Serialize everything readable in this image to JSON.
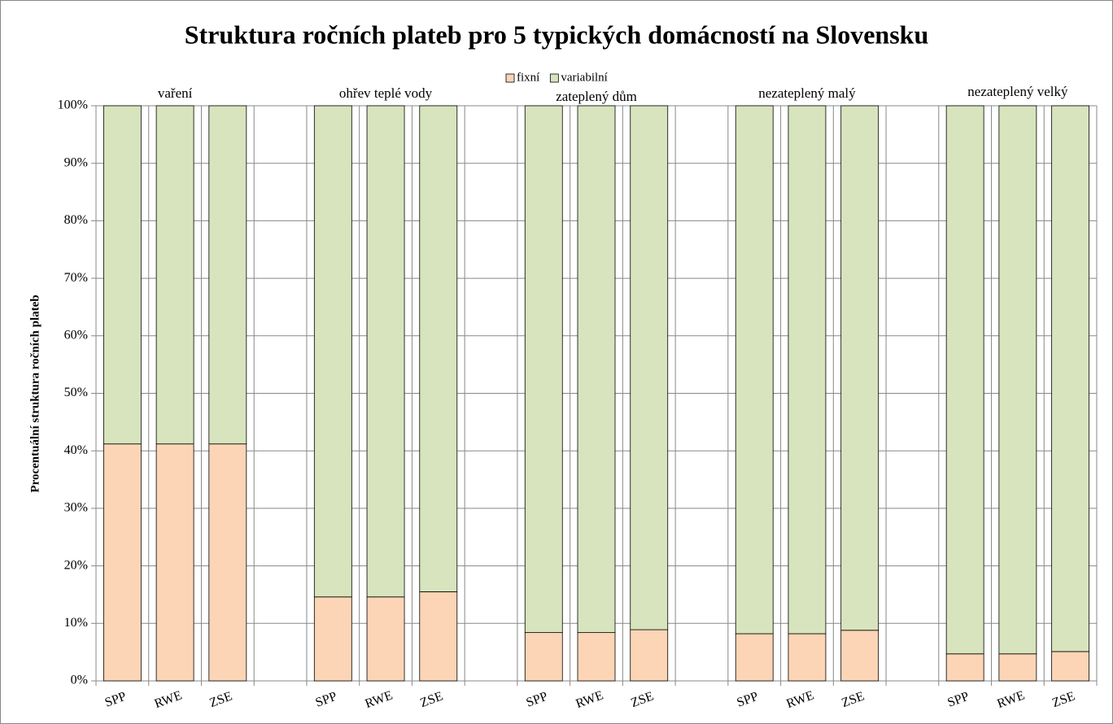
{
  "chart_data": {
    "type": "stacked_bar",
    "title": "Struktura ročních plateb pro 5 typických domácností na Slovensku",
    "y_label": "Procentuální struktura ročních plateb",
    "categories": [
      "SPP",
      "RWE",
      "ZSE",
      null,
      "SPP",
      "RWE",
      "ZSE",
      null,
      "SPP",
      "RWE",
      "ZSE",
      null,
      "SPP",
      "RWE",
      "ZSE",
      null,
      "SPP",
      "RWE",
      "ZSE"
    ],
    "group_labels": [
      "vaření",
      "ohřev teplé vody",
      "zateplený dům",
      "nezateplený malý",
      "nezateplený velký"
    ],
    "series": [
      {
        "name": "fixní",
        "color": "#fbd5b5",
        "values": [
          41.2,
          41.2,
          41.2,
          null,
          14.6,
          14.6,
          15.5,
          null,
          8.4,
          8.4,
          8.9,
          null,
          8.2,
          8.2,
          8.8,
          null,
          4.7,
          4.7,
          5.1
        ]
      },
      {
        "name": "variabilní",
        "color": "#d7e4bd",
        "values": [
          58.8,
          58.8,
          58.8,
          null,
          85.4,
          85.4,
          84.5,
          null,
          91.6,
          91.6,
          91.1,
          null,
          91.8,
          91.8,
          91.2,
          null,
          95.3,
          95.3,
          94.9
        ]
      }
    ],
    "ylim": [
      0,
      100
    ],
    "yticks": [
      {
        "value": 0,
        "label": "0%"
      },
      {
        "value": 10,
        "label": "10%"
      },
      {
        "value": 20,
        "label": "20%"
      },
      {
        "value": 30,
        "label": "30%"
      },
      {
        "value": 40,
        "label": "40%"
      },
      {
        "value": 50,
        "label": "50%"
      },
      {
        "value": 60,
        "label": "60%"
      },
      {
        "value": 70,
        "label": "70%"
      },
      {
        "value": 80,
        "label": "80%"
      },
      {
        "value": 90,
        "label": "90%"
      },
      {
        "value": 100,
        "label": "100%"
      }
    ],
    "grid": true
  }
}
